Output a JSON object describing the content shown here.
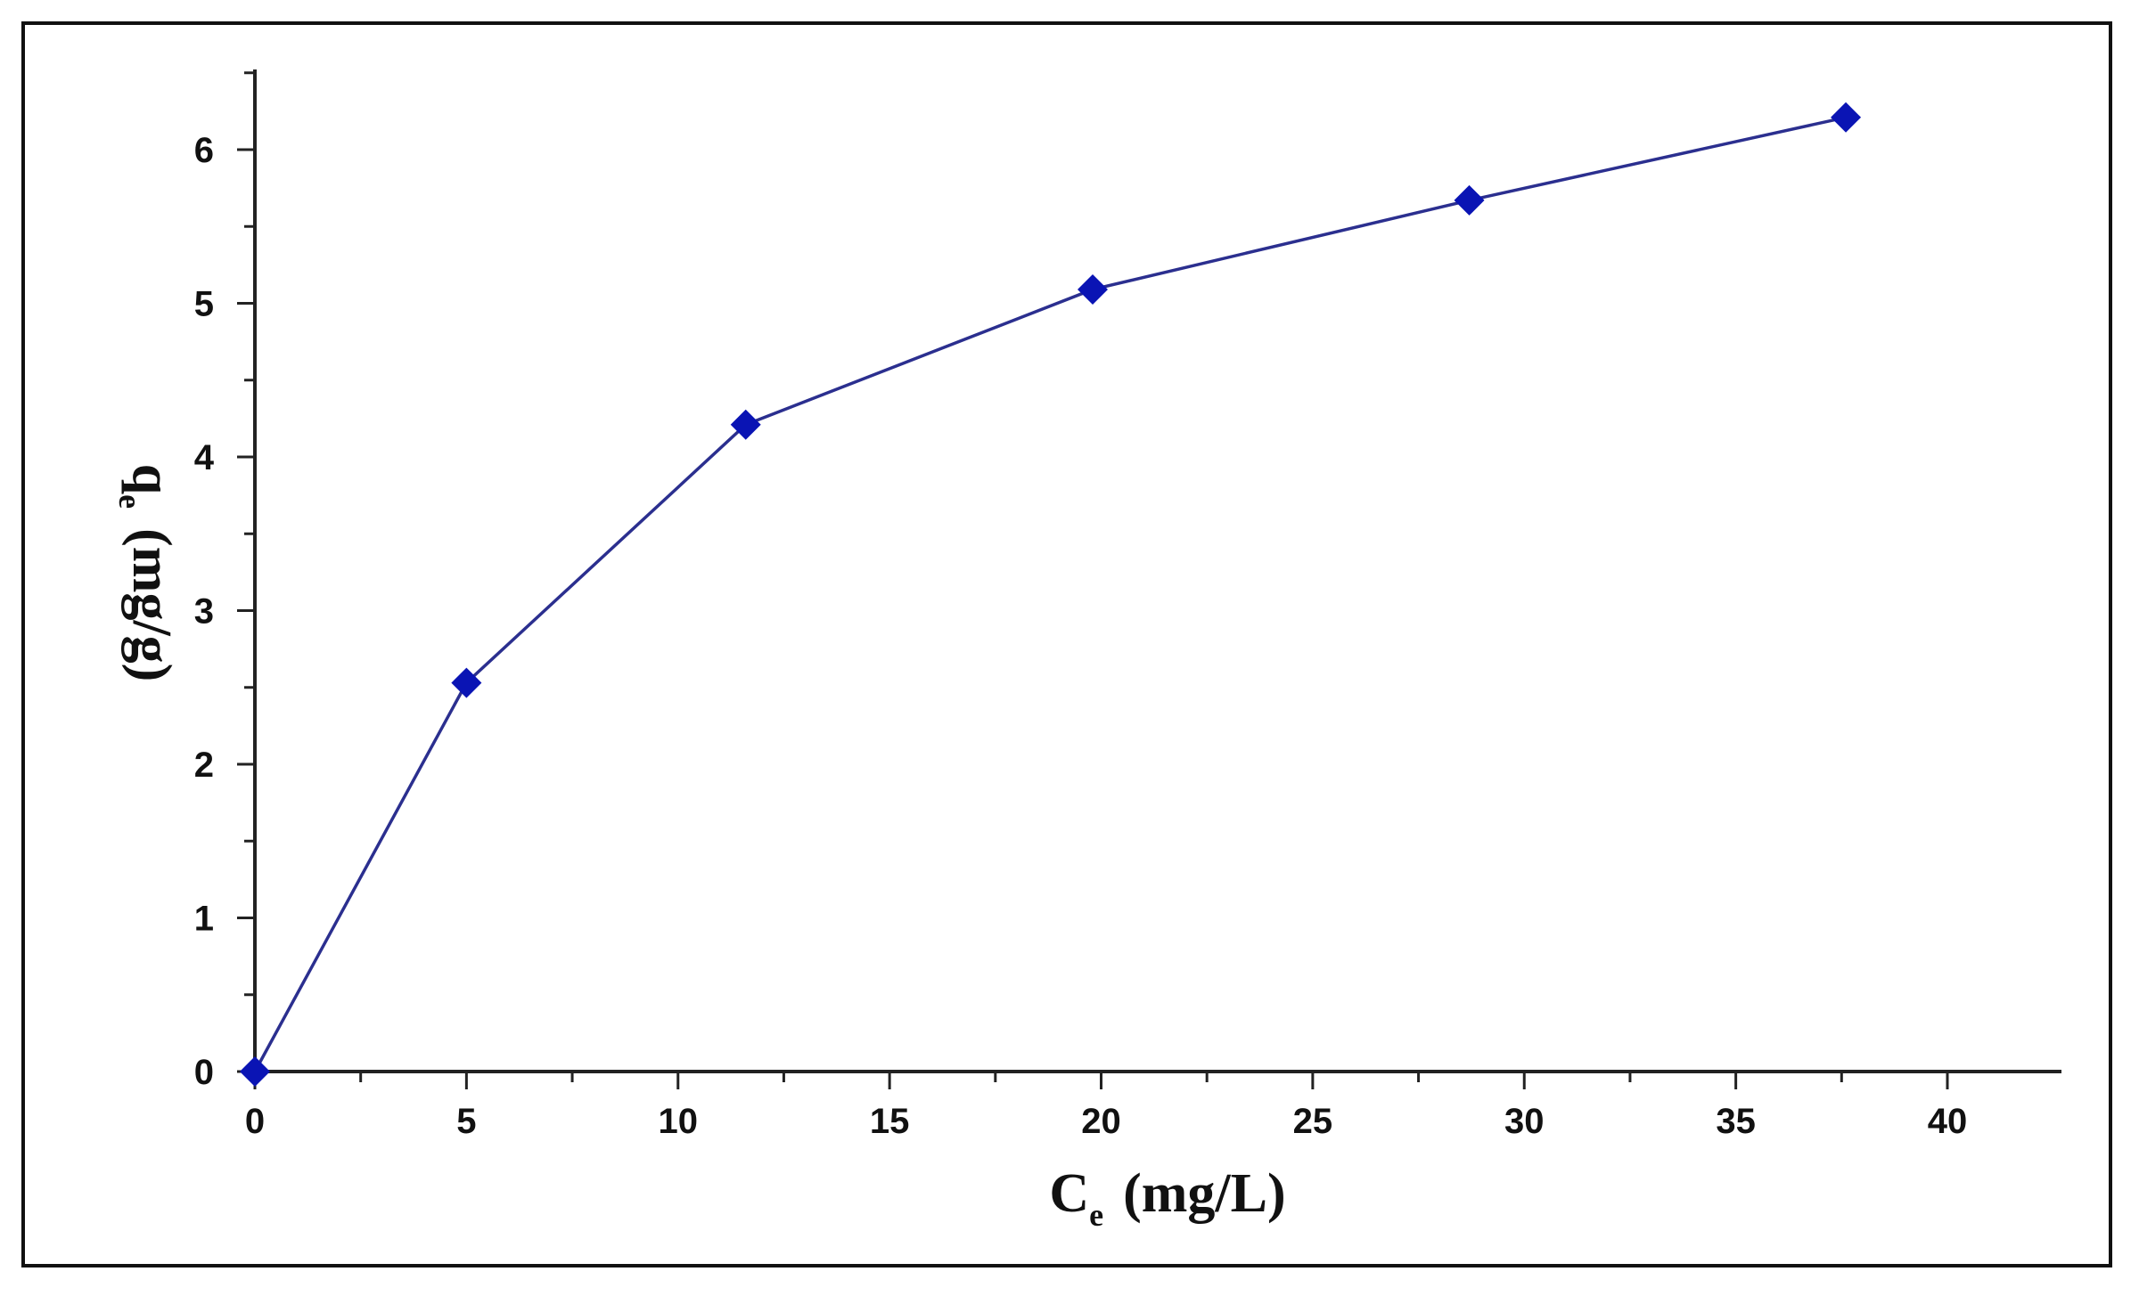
{
  "chart_data": {
    "type": "line",
    "title": "",
    "xlabel": {
      "main": "C",
      "sub": "e",
      "unit": "(mg/L)"
    },
    "ylabel": {
      "main": "q",
      "sub": "e",
      "unit": "(mg/g)"
    },
    "xlim": [
      0,
      42
    ],
    "ylim": [
      0,
      6.5
    ],
    "xticks": [
      0,
      5,
      10,
      15,
      20,
      25,
      30,
      35,
      40
    ],
    "yticks": [
      0,
      1,
      2,
      3,
      4,
      5,
      6
    ],
    "grid": false,
    "legend": "none",
    "series": [
      {
        "x": [
          0,
          5.0,
          11.6,
          19.8,
          28.7,
          37.6
        ],
        "y": [
          0,
          2.53,
          4.21,
          5.09,
          5.67,
          6.21
        ]
      }
    ],
    "colors": {
      "line": "#2b2f8f",
      "marker": "#0a14b4",
      "axis": "#222222"
    }
  }
}
